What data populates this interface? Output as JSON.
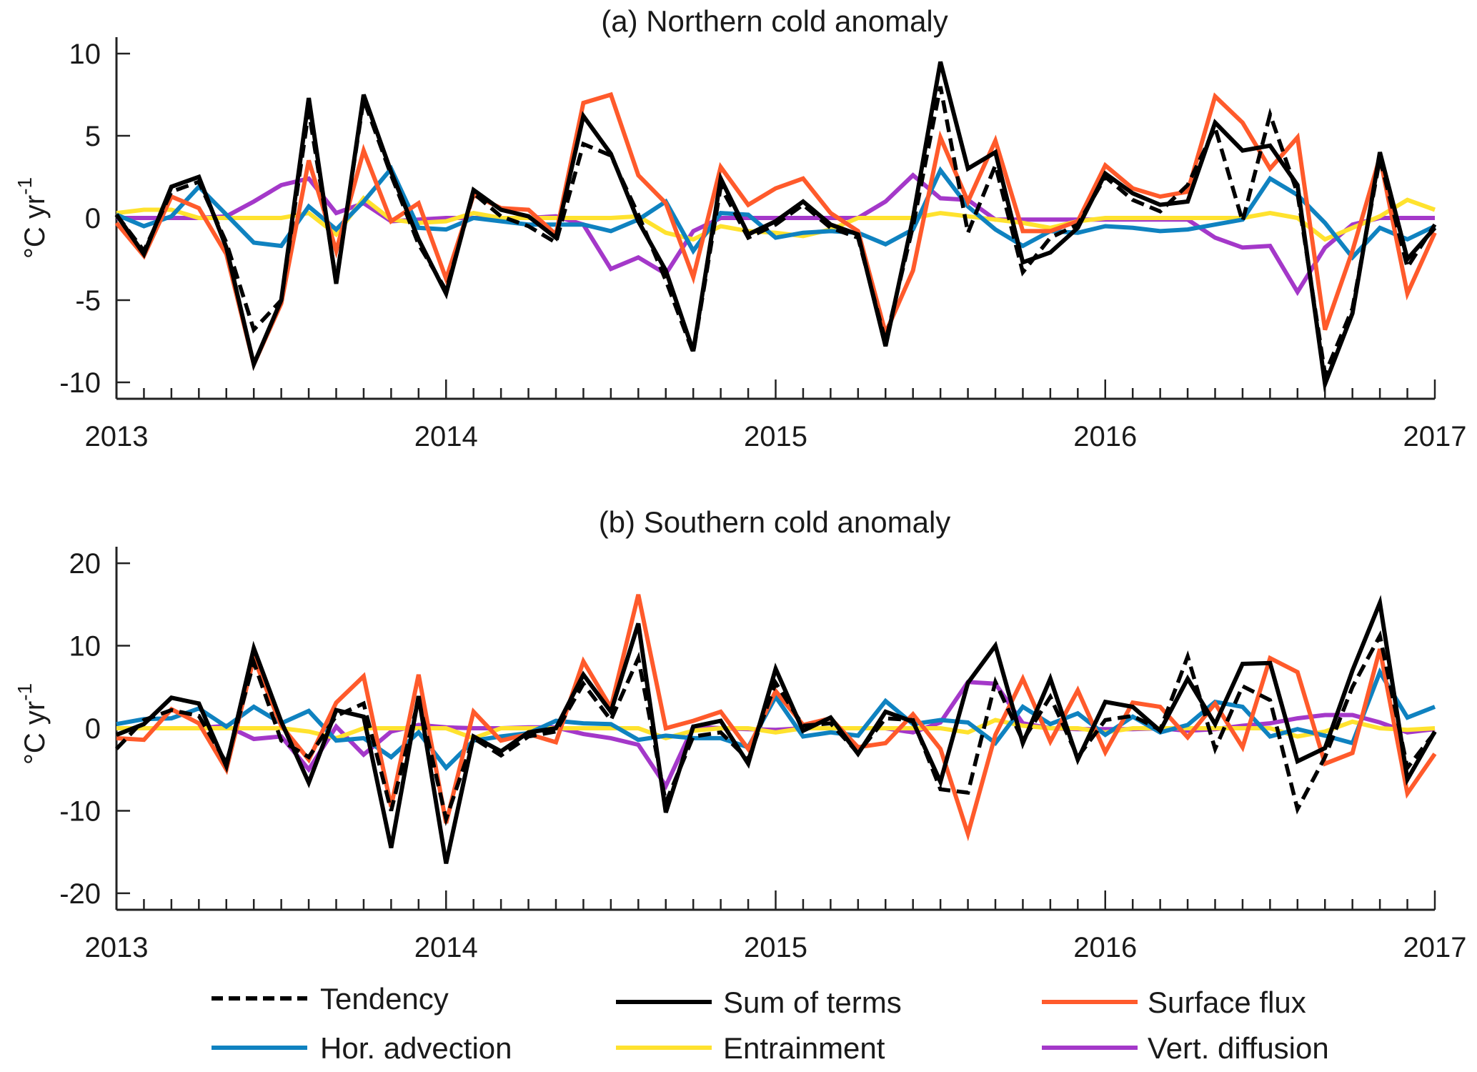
{
  "chart_data": [
    {
      "type": "line",
      "title": "(a) Northern cold anomaly",
      "xlabel": "",
      "ylabel": "°C yr",
      "ylabel_superscript": "-1",
      "x_start": "2013-01",
      "x_step": "1 month",
      "xlim": [
        2013,
        2017
      ],
      "ylim": [
        -11,
        11
      ],
      "yticks": [
        -10,
        -5,
        0,
        5,
        10
      ],
      "xtick_labels": [
        "2013",
        "2014",
        "2015",
        "2016",
        "2017"
      ],
      "grid": false,
      "series": [
        {
          "key": "tendency",
          "name": "Tendency",
          "values": [
            0.2,
            -2.0,
            1.6,
            2.2,
            -1.5,
            -6.8,
            -5.0,
            6.5,
            -3.8,
            7.2,
            2.6,
            -1.6,
            -4.4,
            1.5,
            0.1,
            -0.5,
            -1.5,
            4.5,
            3.8,
            0.2,
            -3.8,
            -8.2,
            1.9,
            -1.2,
            -0.4,
            0.8,
            -0.6,
            -1.2,
            -7.5,
            -0.5,
            8.0,
            -0.9,
            3.2,
            -3.3,
            -1.2,
            -0.4,
            2.5,
            1.1,
            0.4,
            2.0,
            5.5,
            -0.2,
            6.3,
            1.5,
            -9.5,
            -5.5,
            3.6,
            -3.0,
            -0.4
          ]
        },
        {
          "key": "sum",
          "name": "Sum of terms",
          "values": [
            0.2,
            -2.2,
            1.9,
            2.5,
            -1.8,
            -8.9,
            -5.0,
            7.3,
            -4.0,
            7.5,
            2.8,
            -1.3,
            -4.6,
            1.7,
            0.5,
            0.1,
            -1.2,
            6.2,
            3.9,
            -0.2,
            -3.2,
            -8.1,
            2.4,
            -1.0,
            -0.2,
            1.0,
            -0.4,
            -1.0,
            -7.8,
            0.0,
            9.5,
            3.0,
            4.0,
            -2.7,
            -2.1,
            -0.6,
            2.7,
            1.5,
            0.8,
            1.0,
            5.8,
            4.1,
            4.4,
            2.0,
            -10.1,
            -5.8,
            4.0,
            -2.5,
            -0.6
          ]
        },
        {
          "key": "surface",
          "name": "Surface flux",
          "values": [
            -0.3,
            -2.3,
            1.3,
            0.6,
            -2.2,
            -8.9,
            -5.2,
            3.5,
            -2.0,
            4.1,
            -0.2,
            0.9,
            -3.7,
            1.4,
            0.6,
            0.5,
            -1.0,
            7.0,
            7.5,
            2.6,
            0.9,
            -3.6,
            3.1,
            0.8,
            1.8,
            2.4,
            0.3,
            -0.8,
            -7.0,
            -3.2,
            4.9,
            1.0,
            4.7,
            -0.8,
            -0.8,
            -0.2,
            3.2,
            1.8,
            1.3,
            1.6,
            7.4,
            5.8,
            3.0,
            4.9,
            -6.8,
            -2.0,
            3.7,
            -4.6,
            -0.9
          ]
        },
        {
          "key": "advection",
          "name": "Hor. advection",
          "values": [
            0.2,
            -0.5,
            0.1,
            1.9,
            0.2,
            -1.5,
            -1.7,
            0.7,
            -0.7,
            1.0,
            3.0,
            -0.6,
            -0.7,
            0.0,
            -0.2,
            -0.4,
            -0.4,
            -0.4,
            -0.8,
            -0.1,
            1.0,
            -2.0,
            0.3,
            0.2,
            -1.2,
            -0.9,
            -0.8,
            -0.9,
            -1.6,
            -0.7,
            2.9,
            0.7,
            -0.7,
            -1.7,
            -0.8,
            -0.9,
            -0.5,
            -0.6,
            -0.8,
            -0.7,
            -0.4,
            -0.1,
            2.4,
            1.4,
            -0.3,
            -2.4,
            -0.6,
            -1.3,
            -0.5
          ]
        },
        {
          "key": "entrainment",
          "name": "Entrainment",
          "values": [
            0.3,
            0.5,
            0.5,
            0.0,
            0.0,
            0.0,
            0.0,
            0.3,
            -1.0,
            1.2,
            -0.1,
            -0.3,
            -0.2,
            0.3,
            0.0,
            0.0,
            0.0,
            0.0,
            0.0,
            0.1,
            -0.9,
            -1.3,
            -0.5,
            -0.8,
            -0.9,
            -1.1,
            -0.7,
            0.0,
            0.0,
            0.0,
            0.3,
            0.1,
            -0.1,
            -0.3,
            -0.6,
            -0.2,
            0.0,
            0.0,
            0.0,
            0.0,
            0.0,
            0.0,
            0.3,
            0.0,
            -1.3,
            -0.6,
            0.1,
            1.1,
            0.5
          ]
        },
        {
          "key": "diffusion",
          "name": "Vert. diffusion",
          "values": [
            0.0,
            0.0,
            0.0,
            0.0,
            0.1,
            1.0,
            2.0,
            2.4,
            0.3,
            0.9,
            -0.2,
            -0.1,
            0.0,
            0.0,
            0.0,
            0.0,
            0.1,
            -0.4,
            -3.1,
            -2.4,
            -3.4,
            -0.8,
            0.0,
            0.0,
            0.0,
            0.0,
            0.0,
            0.0,
            1.0,
            2.6,
            1.2,
            1.1,
            -0.1,
            -0.1,
            -0.1,
            -0.1,
            -0.1,
            -0.1,
            -0.1,
            -0.1,
            -1.2,
            -1.8,
            -1.7,
            -4.5,
            -1.8,
            -0.4,
            0.0,
            0.0,
            0.0
          ]
        }
      ]
    },
    {
      "type": "line",
      "title": "(b) Southern cold anomaly",
      "xlabel": "",
      "ylabel": "°C yr",
      "ylabel_superscript": "-1",
      "x_start": "2013-01",
      "x_step": "1 month",
      "xlim": [
        2013,
        2017
      ],
      "ylim": [
        -22,
        22
      ],
      "yticks": [
        -20,
        -10,
        0,
        10,
        20
      ],
      "xtick_labels": [
        "2013",
        "2014",
        "2015",
        "2016",
        "2017"
      ],
      "grid": false,
      "series": [
        {
          "key": "tendency",
          "name": "Tendency",
          "values": [
            -2.5,
            1.0,
            2.2,
            1.5,
            -4.2,
            8.0,
            -1.5,
            -3.5,
            1.5,
            3.0,
            -10.0,
            3.5,
            -11.0,
            -1.2,
            -3.3,
            -1.0,
            -0.4,
            5.4,
            1.0,
            8.5,
            -9.0,
            -1.0,
            -0.5,
            -3.8,
            5.5,
            0.3,
            0.6,
            -3.0,
            1.2,
            1.0,
            -7.4,
            -7.8,
            5.6,
            -1.5,
            3.8,
            -3.5,
            1.0,
            1.5,
            -0.2,
            8.7,
            -2.5,
            5.1,
            3.4,
            -9.8,
            -3.5,
            5.0,
            11.2,
            -4.8,
            -0.5
          ]
        },
        {
          "key": "sum",
          "name": "Sum of terms",
          "values": [
            -0.8,
            0.5,
            3.7,
            3.0,
            -4.6,
            9.7,
            0.8,
            -6.6,
            2.2,
            1.4,
            -14.5,
            3.9,
            -16.4,
            -1.0,
            -2.8,
            -0.5,
            0.0,
            6.5,
            2.0,
            12.7,
            -10.2,
            0.2,
            0.9,
            -4.3,
            7.2,
            -0.3,
            1.3,
            -3.1,
            2.0,
            0.8,
            -6.5,
            5.5,
            10.0,
            -1.8,
            6.0,
            -3.8,
            3.2,
            2.6,
            -0.3,
            6.0,
            0.5,
            7.8,
            7.9,
            -4.0,
            -2.4,
            7.0,
            15.2,
            -6.2,
            -0.4
          ]
        },
        {
          "key": "surface",
          "name": "Surface flux",
          "values": [
            -1.2,
            -1.4,
            2.3,
            0.6,
            -5.0,
            8.5,
            0.3,
            -3.8,
            3.1,
            6.3,
            -9.5,
            6.5,
            -11.5,
            2.0,
            -1.5,
            -0.7,
            -1.7,
            8.1,
            2.5,
            16.2,
            0.0,
            0.9,
            2.0,
            -2.5,
            4.5,
            0.4,
            1.2,
            -2.3,
            -1.8,
            1.7,
            -2.5,
            -12.8,
            -0.8,
            6.0,
            -1.6,
            4.6,
            -2.9,
            3.1,
            2.6,
            -1.1,
            3.0,
            -2.3,
            8.5,
            6.8,
            -4.3,
            -3.0,
            9.6,
            -7.9,
            -3.1
          ]
        },
        {
          "key": "advection",
          "name": "Hor. advection",
          "values": [
            0.5,
            1.1,
            1.2,
            2.4,
            0.2,
            2.6,
            0.6,
            2.1,
            -1.5,
            -1.2,
            -3.5,
            -0.5,
            -4.8,
            -1.5,
            -1.0,
            -0.6,
            0.9,
            0.6,
            0.5,
            -1.4,
            -0.9,
            -1.2,
            -1.2,
            -2.3,
            3.8,
            -1.0,
            -0.5,
            -0.9,
            3.3,
            0.5,
            1.0,
            0.7,
            -1.8,
            2.6,
            0.5,
            1.8,
            -0.8,
            1.4,
            -0.5,
            0.4,
            3.2,
            2.6,
            -1.0,
            -0.1,
            -0.9,
            -1.8,
            6.8,
            1.3,
            2.6
          ]
        },
        {
          "key": "entrainment",
          "name": "Entrainment",
          "values": [
            0.0,
            0.0,
            0.0,
            0.0,
            0.0,
            0.0,
            0.0,
            -0.4,
            -1.2,
            0.0,
            0.0,
            0.0,
            0.0,
            -1.2,
            0.0,
            0.0,
            0.0,
            0.0,
            0.0,
            0.0,
            -1.2,
            -0.3,
            0.0,
            0.0,
            -0.5,
            0.0,
            0.0,
            0.0,
            0.0,
            0.0,
            0.0,
            -0.5,
            1.0,
            0.3,
            0.0,
            0.0,
            -0.5,
            0.0,
            0.0,
            0.0,
            0.0,
            0.0,
            0.0,
            -1.0,
            -0.4,
            0.8,
            0.0,
            -0.2,
            0.0
          ]
        },
        {
          "key": "diffusion",
          "name": "Vert. diffusion",
          "values": [
            0.0,
            0.0,
            0.0,
            0.0,
            0.3,
            -1.3,
            -1.0,
            -5.0,
            0.2,
            -3.2,
            -0.4,
            0.4,
            0.1,
            0.0,
            0.0,
            0.1,
            0.1,
            -0.7,
            -1.2,
            -2.0,
            -7.0,
            0.2,
            0.0,
            -0.1,
            -0.2,
            0.0,
            0.0,
            0.0,
            0.0,
            -0.5,
            0.7,
            5.6,
            5.4,
            0.6,
            0.0,
            -0.1,
            -0.1,
            -0.1,
            0.0,
            -0.3,
            -0.1,
            0.3,
            0.6,
            1.2,
            1.6,
            1.6,
            0.7,
            -0.5,
            -0.1
          ]
        }
      ]
    }
  ],
  "legend": {
    "placement": "bottom",
    "entries": [
      {
        "key": "tendency",
        "label": "Tendency",
        "color": "#000000",
        "style": "dashed"
      },
      {
        "key": "sum",
        "label": "Sum of terms",
        "color": "#000000",
        "style": "solid"
      },
      {
        "key": "surface",
        "label": "Surface flux",
        "color": "#FF5A2B",
        "style": "solid"
      },
      {
        "key": "advection",
        "label": "Hor. advection",
        "color": "#0F82C0",
        "style": "solid"
      },
      {
        "key": "entrainment",
        "label": "Entrainment",
        "color": "#FFE22E",
        "style": "solid"
      },
      {
        "key": "diffusion",
        "label": "Vert. diffusion",
        "color": "#A438C9",
        "style": "solid"
      }
    ]
  }
}
